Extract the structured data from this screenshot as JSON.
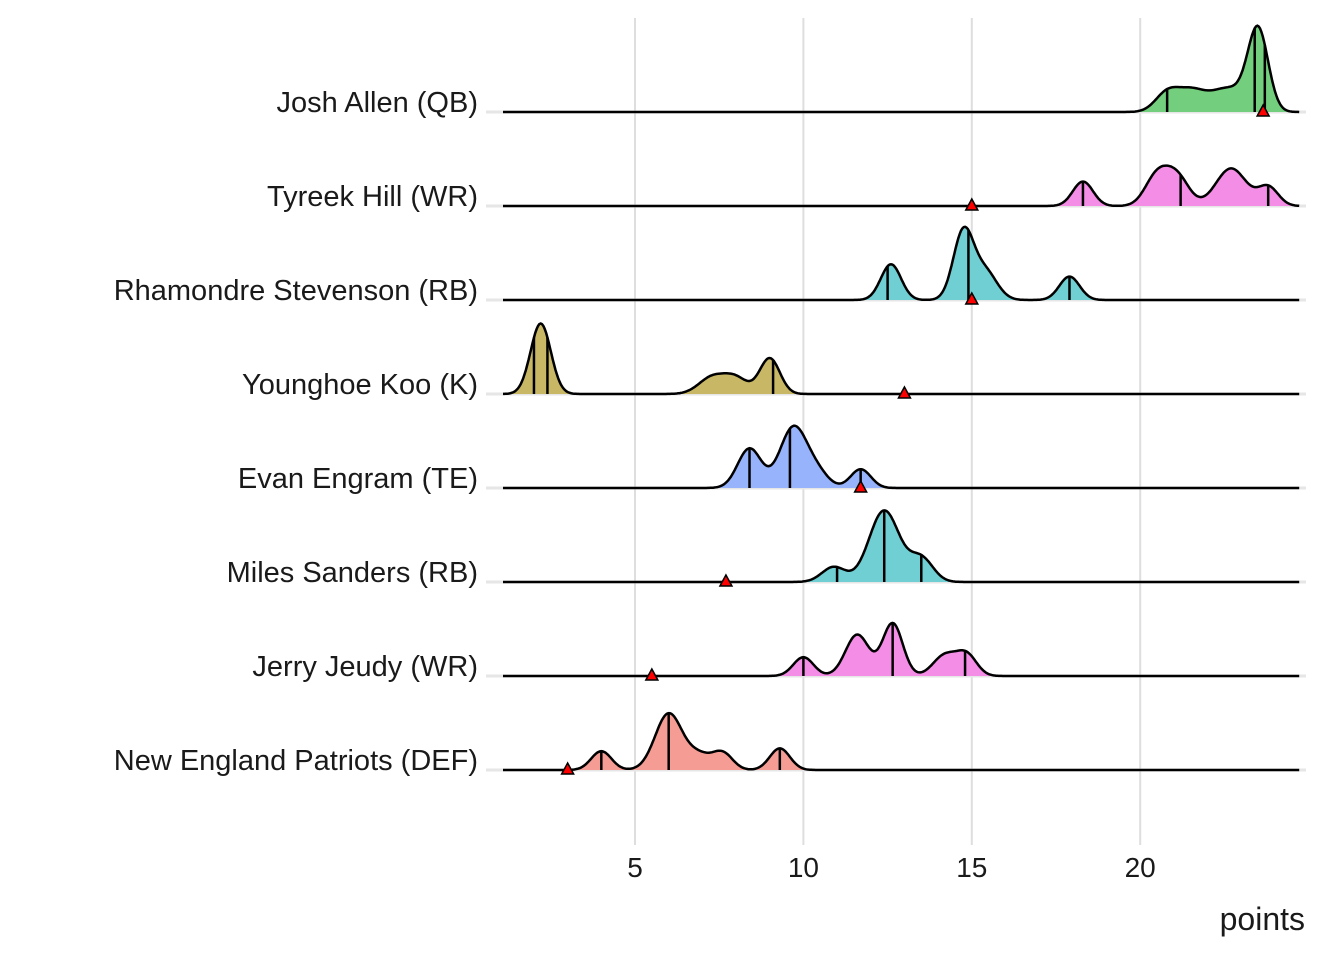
{
  "chart_data": {
    "type": "ridgeline",
    "title": "",
    "xlabel": "points",
    "ylabel": "",
    "xlim": [
      1.08,
      24.73
    ],
    "xticks": [
      5,
      10,
      15,
      20
    ],
    "xtick_labels": [
      "5",
      "10",
      "15",
      "20"
    ],
    "grid": "vertical major",
    "marker": "red triangle",
    "series": [
      {
        "name": "Josh Allen (QB)",
        "color": "#73CF7D",
        "marker": 23.65,
        "quantiles": [
          20.8,
          23.4,
          23.7
        ],
        "density_components": [
          [
            20.8,
            0.35,
            0.2
          ],
          [
            21.5,
            0.4,
            0.2
          ],
          [
            22.6,
            0.55,
            0.25
          ],
          [
            23.5,
            0.3,
            0.85
          ]
        ]
      },
      {
        "name": "Tyreek Hill (WR)",
        "color": "#F38DE6",
        "marker": 15.0,
        "quantiles": [
          18.3,
          21.2,
          23.8
        ],
        "density_components": [
          [
            18.3,
            0.3,
            0.26
          ],
          [
            20.5,
            0.35,
            0.32
          ],
          [
            21.1,
            0.35,
            0.3
          ],
          [
            22.7,
            0.45,
            0.4
          ],
          [
            23.8,
            0.3,
            0.2
          ]
        ]
      },
      {
        "name": "Rhamondre Stevenson (RB)",
        "color": "#6FCFD2",
        "marker": 15.0,
        "quantiles": [
          12.5,
          14.9,
          17.9
        ],
        "density_components": [
          [
            12.6,
            0.3,
            0.38
          ],
          [
            14.75,
            0.3,
            0.72
          ],
          [
            15.4,
            0.35,
            0.3
          ],
          [
            17.9,
            0.3,
            0.25
          ]
        ]
      },
      {
        "name": "Younghoe Koo (K)",
        "color": "#C8B866",
        "marker": 13.0,
        "quantiles": [
          2.0,
          2.4,
          9.1
        ],
        "density_components": [
          [
            2.2,
            0.3,
            0.75
          ],
          [
            7.3,
            0.4,
            0.18
          ],
          [
            8.0,
            0.35,
            0.16
          ],
          [
            9.0,
            0.3,
            0.38
          ]
        ]
      },
      {
        "name": "Evan Engram (TE)",
        "color": "#97B3FB",
        "marker": 11.7,
        "quantiles": [
          8.4,
          9.6,
          11.7
        ],
        "density_components": [
          [
            8.4,
            0.35,
            0.42
          ],
          [
            9.7,
            0.4,
            0.64
          ],
          [
            10.4,
            0.35,
            0.15
          ],
          [
            11.7,
            0.3,
            0.2
          ]
        ]
      },
      {
        "name": "Miles Sanders (RB)",
        "color": "#6FCFD2",
        "marker": 7.7,
        "quantiles": [
          11.0,
          12.4,
          13.5
        ],
        "density_components": [
          [
            10.9,
            0.35,
            0.16
          ],
          [
            12.4,
            0.45,
            0.76
          ],
          [
            13.5,
            0.35,
            0.25
          ]
        ]
      },
      {
        "name": "Jerry Jeudy (WR)",
        "color": "#F38DE6",
        "marker": 5.5,
        "quantiles": [
          10.0,
          12.65,
          14.8
        ],
        "density_components": [
          [
            10.0,
            0.3,
            0.2
          ],
          [
            11.6,
            0.35,
            0.44
          ],
          [
            12.65,
            0.3,
            0.56
          ],
          [
            14.2,
            0.35,
            0.22
          ],
          [
            14.85,
            0.3,
            0.22
          ]
        ]
      },
      {
        "name": "New England Patriots (DEF)",
        "color": "#F59D94",
        "marker": 3.0,
        "quantiles": [
          4.0,
          6.0,
          9.3
        ],
        "density_components": [
          [
            4.0,
            0.3,
            0.2
          ],
          [
            6.0,
            0.4,
            0.6
          ],
          [
            6.9,
            0.35,
            0.15
          ],
          [
            7.6,
            0.3,
            0.18
          ],
          [
            9.3,
            0.3,
            0.23
          ]
        ]
      }
    ]
  }
}
